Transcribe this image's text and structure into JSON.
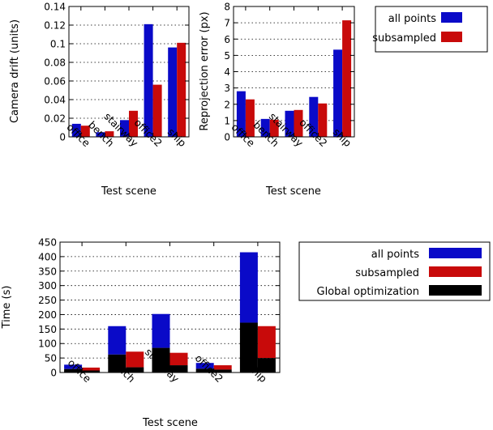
{
  "colors": {
    "all_points": "#0a0ac8",
    "subsampled": "#c80a0a",
    "global": "#000000"
  },
  "chart_data": [
    {
      "type": "bar",
      "xlabel": "Test scene",
      "ylabel": "Camera drift (units)",
      "categories": [
        "office",
        "bench",
        "stairway",
        "office2",
        "ship"
      ],
      "ylim": [
        0,
        0.14
      ],
      "yticks": [
        "0",
        "0.02",
        "0.04",
        "0.06",
        "0.08",
        "0.1",
        "0.12",
        "0.14"
      ],
      "grid": true,
      "series": [
        {
          "name": "all points",
          "values": [
            0.014,
            0.005,
            0.018,
            0.121,
            0.096
          ]
        },
        {
          "name": "subsampled",
          "values": [
            0.012,
            0.006,
            0.028,
            0.056,
            0.101
          ]
        }
      ]
    },
    {
      "type": "bar",
      "xlabel": "Test scene",
      "ylabel": "Reprojection error (px)",
      "categories": [
        "office",
        "bench",
        "stairway",
        "office2",
        "ship"
      ],
      "ylim": [
        0,
        8
      ],
      "yticks": [
        "0",
        "1",
        "2",
        "3",
        "4",
        "5",
        "6",
        "7",
        "8"
      ],
      "grid": true,
      "legend": {
        "position": "right",
        "entries": [
          "all points",
          "subsampled"
        ]
      },
      "series": [
        {
          "name": "all points",
          "values": [
            2.8,
            1.1,
            1.6,
            2.45,
            5.35
          ]
        },
        {
          "name": "subsampled",
          "values": [
            2.3,
            1.05,
            1.65,
            2.05,
            7.15
          ]
        }
      ]
    },
    {
      "type": "bar",
      "stacked": true,
      "xlabel": "Test scene",
      "ylabel": "Time (s)",
      "categories": [
        "office",
        "bench",
        "stairway",
        "office2",
        "ship"
      ],
      "ylim": [
        0,
        450
      ],
      "yticks": [
        "0",
        "50",
        "100",
        "150",
        "200",
        "250",
        "300",
        "350",
        "400",
        "450"
      ],
      "grid": true,
      "legend": {
        "position": "right",
        "entries": [
          "all points",
          "subsampled",
          "Global optimization"
        ]
      },
      "series": [
        {
          "name": "all points",
          "totals": [
            27,
            160,
            202,
            33,
            415
          ],
          "global": [
            12,
            62,
            85,
            13,
            172
          ]
        },
        {
          "name": "subsampled",
          "totals": [
            17,
            72,
            68,
            25,
            160
          ],
          "global": [
            7,
            18,
            25,
            10,
            50
          ]
        }
      ]
    }
  ]
}
